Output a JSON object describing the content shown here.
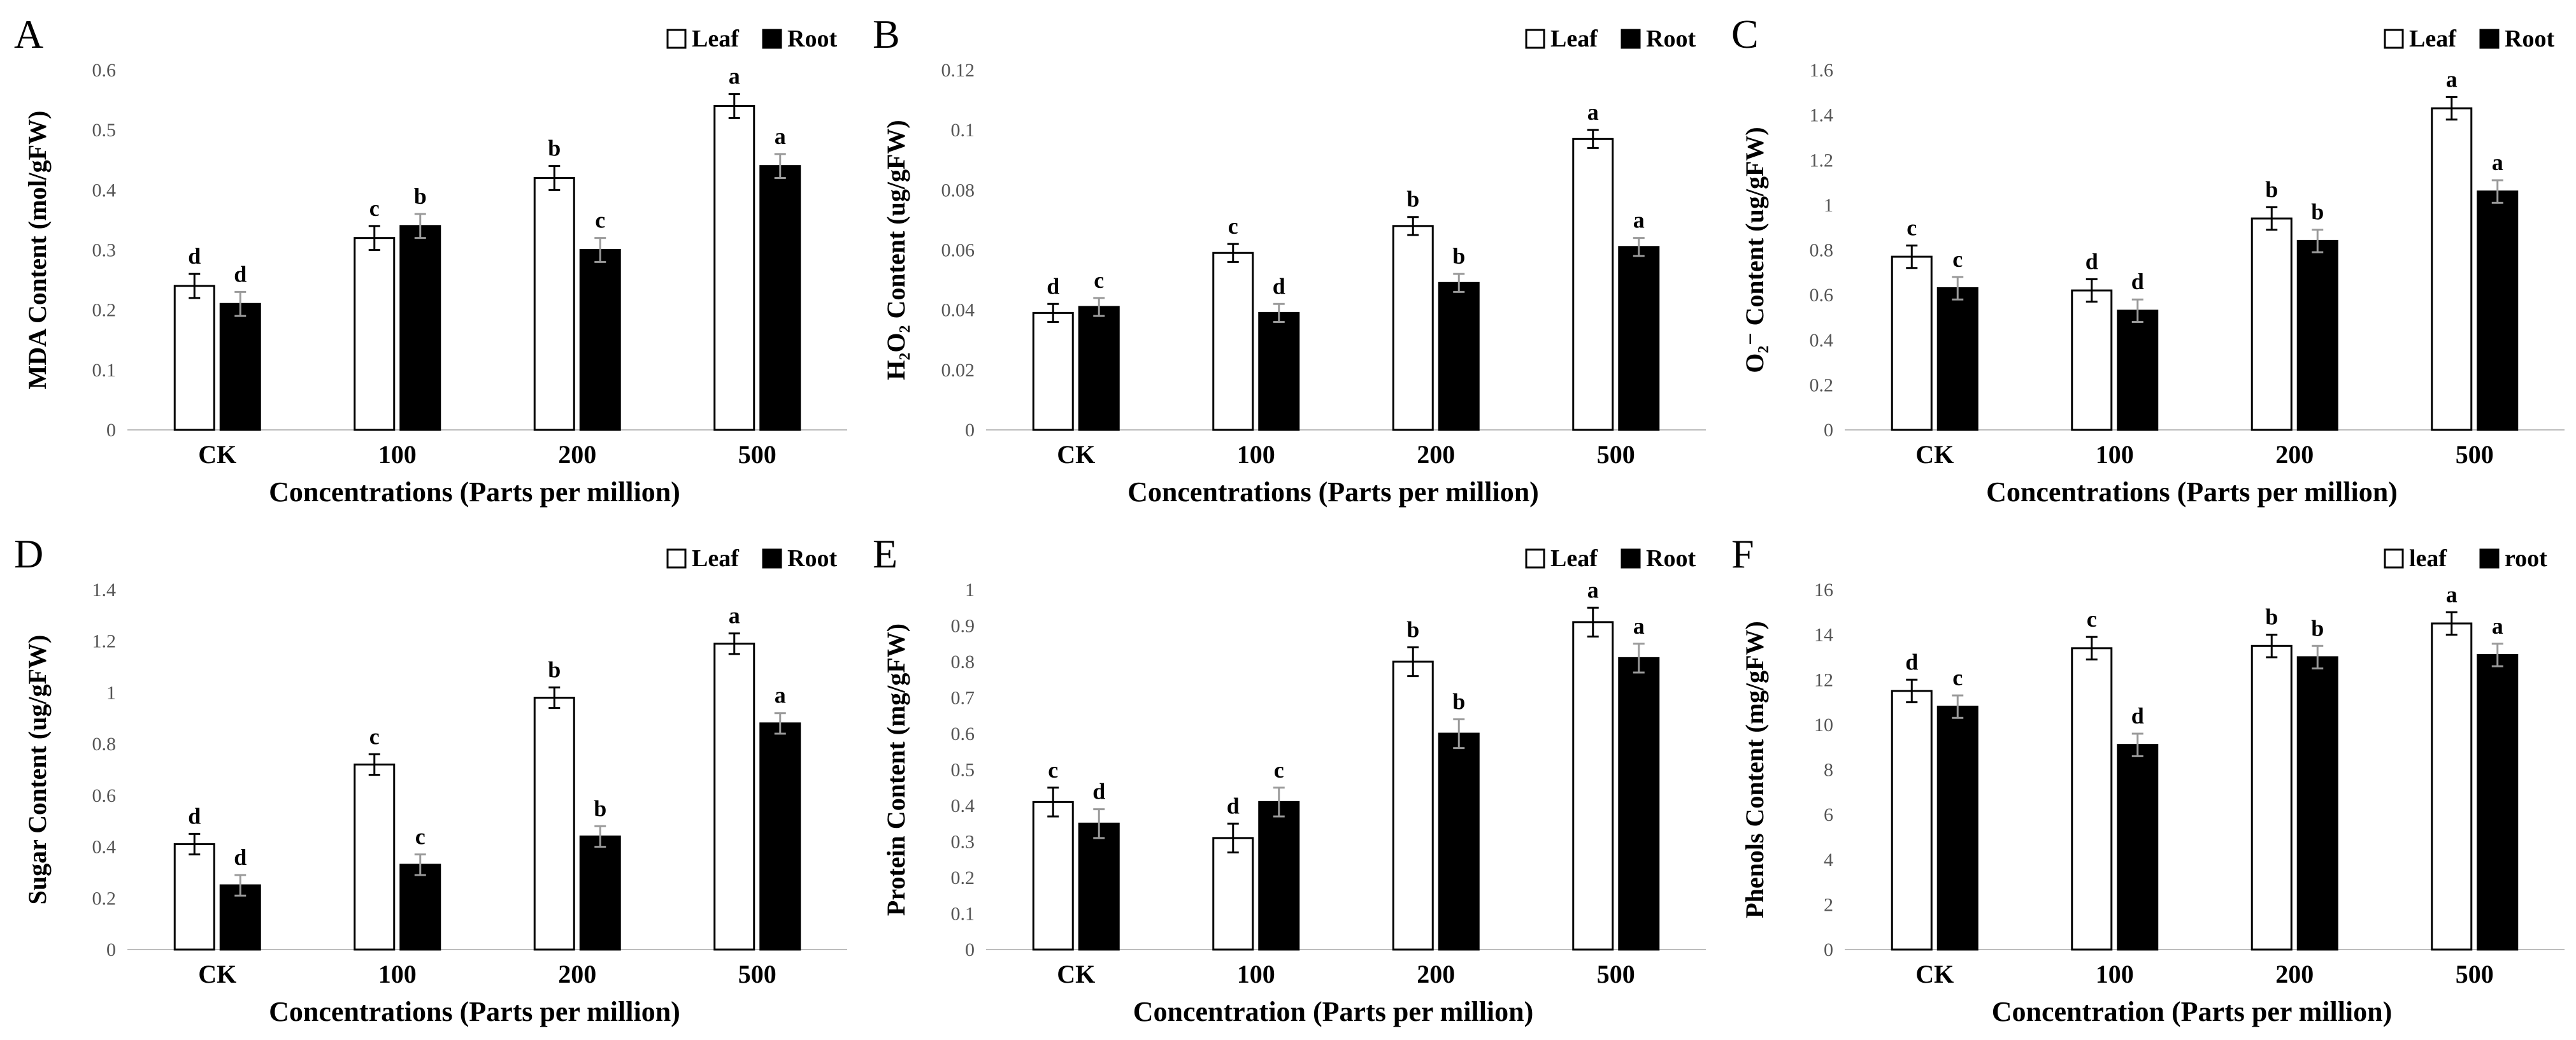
{
  "figure": {
    "panels": [
      {
        "letter": "A",
        "legend": [
          "Leaf",
          "Root"
        ]
      },
      {
        "letter": "B",
        "legend": [
          "Leaf",
          "Root"
        ]
      },
      {
        "letter": "C",
        "legend": [
          "Leaf",
          "Root"
        ]
      },
      {
        "letter": "D",
        "legend": [
          "Leaf",
          "Root"
        ]
      },
      {
        "letter": "E",
        "legend": [
          "Leaf",
          "Root"
        ]
      },
      {
        "letter": "F",
        "legend": [
          "leaf",
          "root"
        ]
      }
    ]
  },
  "chart_data": [
    {
      "type": "bar",
      "panel": "A",
      "categories": [
        "CK",
        "100",
        "200",
        "500"
      ],
      "xlabel": "Concentrations (Parts per million)",
      "ylabel": "MDA Content (mol/gFW)",
      "ylim": [
        0,
        0.6
      ],
      "yticks": [
        "0",
        "0.1",
        "0.2",
        "0.3",
        "0.4",
        "0.5",
        "0.6"
      ],
      "legend_position": "top-right",
      "series": [
        {
          "name": "Leaf",
          "values": [
            0.24,
            0.32,
            0.42,
            0.54
          ],
          "errors": [
            0.02,
            0.02,
            0.02,
            0.02
          ],
          "letters": [
            "d",
            "c",
            "b",
            "a"
          ],
          "color": "#ffffff"
        },
        {
          "name": "Root",
          "values": [
            0.21,
            0.34,
            0.3,
            0.44
          ],
          "errors": [
            0.02,
            0.02,
            0.02,
            0.02
          ],
          "letters": [
            "d",
            "b",
            "c",
            "a"
          ],
          "color": "#000000"
        }
      ]
    },
    {
      "type": "bar",
      "panel": "B",
      "categories": [
        "CK",
        "100",
        "200",
        "500"
      ],
      "xlabel": "Concentrations (Parts per million)",
      "ylabel": "H₂O₂ Content (ug/gFW)",
      "ylim": [
        0,
        0.12
      ],
      "yticks": [
        "0",
        "0.02",
        "0.04",
        "0.06",
        "0.08",
        "0.1",
        "0.12"
      ],
      "legend_position": "top-right",
      "series": [
        {
          "name": "Leaf",
          "values": [
            0.039,
            0.059,
            0.068,
            0.097
          ],
          "errors": [
            0.003,
            0.003,
            0.003,
            0.003
          ],
          "letters": [
            "d",
            "c",
            "b",
            "a"
          ],
          "color": "#ffffff"
        },
        {
          "name": "Root",
          "values": [
            0.041,
            0.039,
            0.049,
            0.061
          ],
          "errors": [
            0.003,
            0.003,
            0.003,
            0.003
          ],
          "letters": [
            "c",
            "d",
            "b",
            "a"
          ],
          "color": "#000000"
        }
      ]
    },
    {
      "type": "bar",
      "panel": "C",
      "categories": [
        "CK",
        "100",
        "200",
        "500"
      ],
      "xlabel": "Concentrations (Parts per million)",
      "ylabel": "O₂⁻ Content (ug/gFW)",
      "ylim": [
        0,
        1.6
      ],
      "yticks": [
        "0",
        "0.2",
        "0.4",
        "0.6",
        "0.8",
        "1",
        "1.2",
        "1.4",
        "1.6"
      ],
      "legend_position": "top-right",
      "series": [
        {
          "name": "Leaf",
          "values": [
            0.77,
            0.62,
            0.94,
            1.43
          ],
          "errors": [
            0.05,
            0.05,
            0.05,
            0.05
          ],
          "letters": [
            "c",
            "d",
            "b",
            "a"
          ],
          "color": "#ffffff"
        },
        {
          "name": "Root",
          "values": [
            0.63,
            0.53,
            0.84,
            1.06
          ],
          "errors": [
            0.05,
            0.05,
            0.05,
            0.05
          ],
          "letters": [
            "c",
            "d",
            "b",
            "a"
          ],
          "color": "#000000"
        }
      ]
    },
    {
      "type": "bar",
      "panel": "D",
      "categories": [
        "CK",
        "100",
        "200",
        "500"
      ],
      "xlabel": "Concentrations (Parts per million)",
      "ylabel": "Sugar Content (ug/gFW)",
      "ylim": [
        0,
        1.4
      ],
      "yticks": [
        "0",
        "0.2",
        "0.4",
        "0.6",
        "0.8",
        "1",
        "1.2",
        "1.4"
      ],
      "legend_position": "top-right",
      "series": [
        {
          "name": "Leaf",
          "values": [
            0.41,
            0.72,
            0.98,
            1.19
          ],
          "errors": [
            0.04,
            0.04,
            0.04,
            0.04
          ],
          "letters": [
            "d",
            "c",
            "b",
            "a"
          ],
          "color": "#ffffff"
        },
        {
          "name": "Root",
          "values": [
            0.25,
            0.33,
            0.44,
            0.88
          ],
          "errors": [
            0.04,
            0.04,
            0.04,
            0.04
          ],
          "letters": [
            "d",
            "c",
            "b",
            "a"
          ],
          "color": "#000000"
        }
      ]
    },
    {
      "type": "bar",
      "panel": "E",
      "categories": [
        "CK",
        "100",
        "200",
        "500"
      ],
      "xlabel": "Concentration (Parts per million)",
      "ylabel": "Protein Content (mg/gFW)",
      "ylim": [
        0,
        1
      ],
      "yticks": [
        "0",
        "0.1",
        "0.2",
        "0.3",
        "0.4",
        "0.5",
        "0.6",
        "0.7",
        "0.8",
        "0.9",
        "1"
      ],
      "legend_position": "top-right",
      "series": [
        {
          "name": "Leaf",
          "values": [
            0.41,
            0.31,
            0.8,
            0.91
          ],
          "errors": [
            0.04,
            0.04,
            0.04,
            0.04
          ],
          "letters": [
            "c",
            "d",
            "b",
            "a"
          ],
          "color": "#ffffff"
        },
        {
          "name": "Root",
          "values": [
            0.35,
            0.41,
            0.6,
            0.81
          ],
          "errors": [
            0.04,
            0.04,
            0.04,
            0.04
          ],
          "letters": [
            "d",
            "c",
            "b",
            "a"
          ],
          "color": "#000000"
        }
      ]
    },
    {
      "type": "bar",
      "panel": "F",
      "categories": [
        "CK",
        "100",
        "200",
        "500"
      ],
      "xlabel": "Concentration (Parts per million)",
      "ylabel": "Phenols Content (mg/gFW)",
      "ylim": [
        0,
        16
      ],
      "yticks": [
        "0",
        "2",
        "4",
        "6",
        "8",
        "10",
        "12",
        "14",
        "16"
      ],
      "legend_position": "top-right",
      "series": [
        {
          "name": "leaf",
          "values": [
            11.5,
            13.4,
            13.5,
            14.5
          ],
          "errors": [
            0.5,
            0.5,
            0.5,
            0.5
          ],
          "letters": [
            "d",
            "c",
            "b",
            "a"
          ],
          "color": "#ffffff"
        },
        {
          "name": "root",
          "values": [
            10.8,
            9.1,
            13.0,
            13.1
          ],
          "errors": [
            0.5,
            0.5,
            0.5,
            0.5
          ],
          "letters": [
            "c",
            "d",
            "b",
            "a"
          ],
          "color": "#000000"
        }
      ]
    }
  ]
}
